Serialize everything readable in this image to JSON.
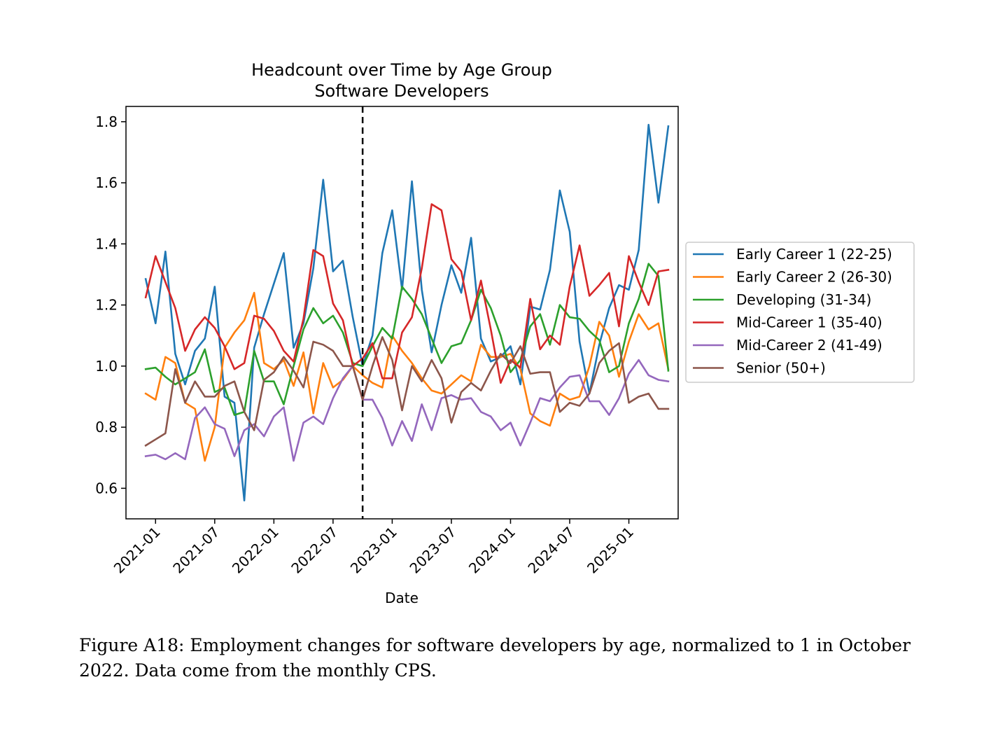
{
  "caption": "Figure A18: Employment changes for software developers by age, normalized to 1 in October 2022. Data come from the monthly CPS.",
  "chart_data": {
    "type": "line",
    "title": "Headcount over Time by Age Group",
    "subtitle": "Software Developers",
    "xlabel": "Date",
    "ylabel": "",
    "x_start": "2020-12",
    "x_ticks": [
      "2021-01",
      "2021-07",
      "2022-01",
      "2022-07",
      "2023-01",
      "2023-07",
      "2024-01",
      "2024-07",
      "2025-01"
    ],
    "x_tick_values": [
      "2021-01",
      "2021-07",
      "2022-01",
      "2022-07",
      "2023-01",
      "2023-07",
      "2024-01",
      "2024-07",
      "2025-01"
    ],
    "xlim": [
      "2020-10",
      "2025-06"
    ],
    "ylim": [
      0.5,
      1.85
    ],
    "y_ticks": [
      0.6,
      0.8,
      1.0,
      1.2,
      1.4,
      1.6,
      1.8
    ],
    "y_tick_labels": [
      "0.6",
      "0.8",
      "1.0",
      "1.2",
      "1.4",
      "1.6",
      "1.8"
    ],
    "reference_line": {
      "x": "2022-10",
      "style": "dashed",
      "color": "#000000"
    },
    "grid": false,
    "legend_placement": "right-outside",
    "series": [
      {
        "name": "Early Career 1 (22-25)",
        "color": "#1f77b4",
        "values": [
          1.285,
          1.14,
          1.375,
          1.04,
          0.94,
          1.05,
          1.09,
          1.26,
          0.9,
          0.88,
          0.56,
          1.06,
          1.17,
          1.27,
          1.37,
          1.06,
          1.14,
          1.32,
          1.61,
          1.31,
          1.345,
          1.16,
          1.0,
          1.1,
          1.37,
          1.51,
          1.25,
          1.605,
          1.25,
          1.045,
          1.2,
          1.33,
          1.24,
          1.42,
          1.09,
          1.015,
          1.03,
          1.065,
          0.94,
          1.195,
          1.185,
          1.315,
          1.575,
          1.44,
          1.08,
          0.91,
          1.07,
          1.19,
          1.265,
          1.25,
          1.38,
          1.79,
          1.535,
          1.785
        ]
      },
      {
        "name": "Early Career 2 (26-30)",
        "color": "#ff7f0e",
        "values": [
          0.91,
          0.89,
          1.03,
          1.01,
          0.88,
          0.86,
          0.69,
          0.8,
          1.06,
          1.11,
          1.15,
          1.24,
          1.01,
          0.99,
          1.02,
          0.935,
          1.045,
          0.845,
          1.01,
          0.93,
          0.955,
          1.0,
          0.97,
          0.945,
          0.93,
          1.1,
          1.05,
          1.01,
          0.96,
          0.92,
          0.91,
          0.94,
          0.97,
          0.95,
          1.07,
          1.03,
          1.03,
          1.04,
          0.99,
          0.845,
          0.82,
          0.805,
          0.91,
          0.89,
          0.9,
          1.0,
          1.145,
          1.1,
          0.965,
          1.08,
          1.17,
          1.12,
          1.14,
          0.99
        ]
      },
      {
        "name": "Developing (31-34)",
        "color": "#2ca02c",
        "values": [
          0.99,
          0.995,
          0.965,
          0.94,
          0.96,
          0.98,
          1.055,
          0.915,
          0.93,
          0.84,
          0.85,
          1.05,
          0.95,
          0.95,
          0.875,
          1.0,
          1.12,
          1.19,
          1.14,
          1.165,
          1.11,
          1.01,
          1.0,
          1.065,
          1.125,
          1.09,
          1.26,
          1.22,
          1.17,
          1.09,
          1.01,
          1.065,
          1.075,
          1.15,
          1.25,
          1.19,
          1.1,
          0.98,
          1.02,
          1.13,
          1.17,
          1.07,
          1.2,
          1.16,
          1.155,
          1.115,
          1.085,
          0.98,
          1.0,
          1.14,
          1.22,
          1.335,
          1.295,
          0.985
        ]
      },
      {
        "name": "Mid-Career 1 (35-40)",
        "color": "#d62728",
        "values": [
          1.225,
          1.36,
          1.275,
          1.19,
          1.05,
          1.12,
          1.16,
          1.125,
          1.065,
          0.99,
          1.01,
          1.165,
          1.155,
          1.115,
          1.05,
          1.015,
          1.155,
          1.38,
          1.36,
          1.205,
          1.15,
          1.0,
          1.025,
          1.075,
          0.96,
          0.96,
          1.11,
          1.16,
          1.32,
          1.53,
          1.51,
          1.35,
          1.31,
          1.15,
          1.28,
          1.12,
          0.945,
          1.02,
          0.995,
          1.22,
          1.055,
          1.1,
          1.07,
          1.26,
          1.395,
          1.23,
          1.265,
          1.305,
          1.13,
          1.36,
          1.275,
          1.2,
          1.31,
          1.315
        ]
      },
      {
        "name": "Mid-Career 2 (41-49)",
        "color": "#9467bd",
        "values": [
          0.705,
          0.71,
          0.695,
          0.715,
          0.695,
          0.83,
          0.865,
          0.81,
          0.795,
          0.705,
          0.79,
          0.81,
          0.77,
          0.835,
          0.865,
          0.69,
          0.815,
          0.835,
          0.81,
          0.895,
          0.96,
          1.0,
          0.89,
          0.89,
          0.83,
          0.74,
          0.82,
          0.755,
          0.875,
          0.79,
          0.895,
          0.905,
          0.89,
          0.895,
          0.85,
          0.835,
          0.79,
          0.815,
          0.74,
          0.815,
          0.895,
          0.885,
          0.93,
          0.965,
          0.97,
          0.885,
          0.885,
          0.84,
          0.895,
          0.975,
          1.02,
          0.97,
          0.955,
          0.95
        ]
      },
      {
        "name": "Senior (50+)",
        "color": "#8c564b",
        "values": [
          0.74,
          0.76,
          0.78,
          0.99,
          0.88,
          0.95,
          0.9,
          0.9,
          0.935,
          0.95,
          0.85,
          0.79,
          0.955,
          0.98,
          1.03,
          0.985,
          0.93,
          1.08,
          1.07,
          1.05,
          1.0,
          1.0,
          0.89,
          1.0,
          1.095,
          1.02,
          0.855,
          1.0,
          0.95,
          1.02,
          0.96,
          0.815,
          0.915,
          0.945,
          0.92,
          0.985,
          1.04,
          1.01,
          1.065,
          0.975,
          0.98,
          0.98,
          0.85,
          0.88,
          0.87,
          0.91,
          1.01,
          1.05,
          1.075,
          0.88,
          0.9,
          0.91,
          0.86,
          0.86
        ]
      }
    ]
  }
}
